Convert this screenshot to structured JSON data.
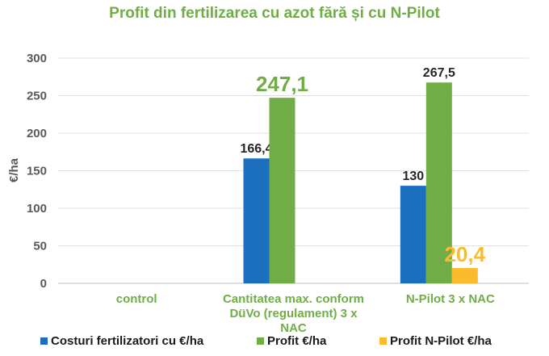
{
  "chart_data": {
    "type": "bar",
    "title": "Profit din fertilizarea cu azot  fără și cu N-Pilot",
    "ylabel": "€/ha",
    "xlabel": "",
    "ylim": [
      0,
      300
    ],
    "yticks": [
      0,
      50,
      100,
      150,
      200,
      250,
      300
    ],
    "grid": true,
    "legend_position": "bottom",
    "categories": [
      "control",
      "Cantitatea max. conform DüVo (regulament)  3 x NAC",
      "N-Pilot 3 x NAC"
    ],
    "category_lines": [
      [
        "control"
      ],
      [
        "Cantitatea max. conform",
        "DüVo (regulament)  3 x",
        "NAC"
      ],
      [
        "N-Pilot 3 x NAC"
      ]
    ],
    "series": [
      {
        "name": "Costuri fertilizatori cu €/ha",
        "color": "#1C6EBF",
        "values": [
          null,
          166.4,
          130
        ],
        "labels": [
          "",
          "166,4",
          "130"
        ],
        "label_color": "#262626",
        "label_large": false
      },
      {
        "name": "Profit €/ha",
        "color": "#70AD47",
        "values": [
          null,
          247.1,
          267.5
        ],
        "labels": [
          "",
          "247,1",
          "267,5"
        ],
        "label_colors": [
          "#70AD47",
          "#70AD47",
          "#262626"
        ],
        "label_large_flags": [
          false,
          true,
          false
        ]
      },
      {
        "name": "Profit N-Pilot €/ha",
        "color": "#FBBC2C",
        "values": [
          null,
          null,
          20.4
        ],
        "labels": [
          "",
          "",
          "20,4"
        ],
        "label_color": "#FBBC2C",
        "label_large": true
      }
    ]
  }
}
